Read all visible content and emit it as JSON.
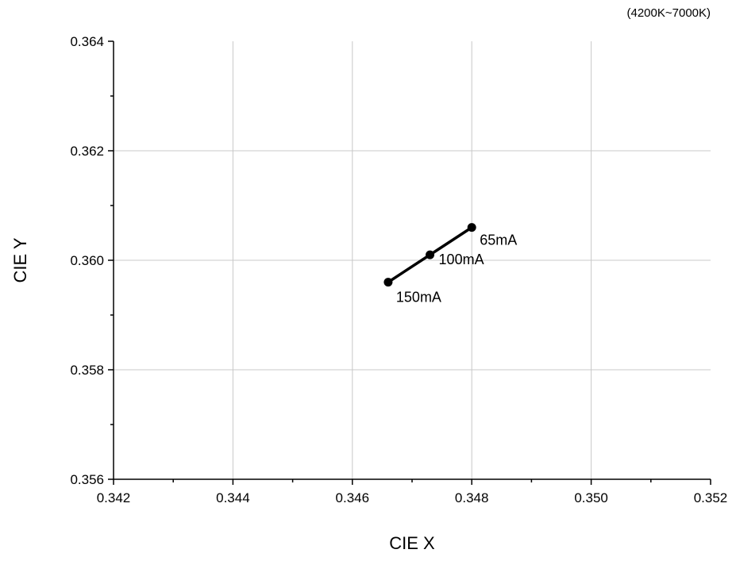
{
  "chart_data": {
    "type": "scatter",
    "title": "",
    "subtitle": "(4200K~7000K)",
    "xlabel": "CIE X",
    "ylabel": "CIE Y",
    "xlim": [
      0.342,
      0.352
    ],
    "ylim": [
      0.356,
      0.364
    ],
    "x_major_ticks": [
      0.342,
      0.344,
      0.346,
      0.348,
      0.35,
      0.352
    ],
    "x_tick_labels": [
      "0.342",
      "0.344",
      "0.346",
      "0.348",
      "0.350",
      "0.352"
    ],
    "y_major_ticks": [
      0.356,
      0.358,
      0.36,
      0.362,
      0.364
    ],
    "y_tick_labels": [
      "0.356",
      "0.358",
      "0.360",
      "0.362",
      "0.364"
    ],
    "grid": true,
    "legend": "none",
    "series": [
      {
        "points": [
          {
            "x": 0.348,
            "y": 0.3606,
            "label": "65mA"
          },
          {
            "x": 0.3473,
            "y": 0.3601,
            "label": "100mA"
          },
          {
            "x": 0.3466,
            "y": 0.3596,
            "label": "150mA"
          }
        ],
        "connected": true
      }
    ],
    "colors": {
      "line": "#000000",
      "grid": "#c8c8c8",
      "axis": "#000000"
    }
  }
}
